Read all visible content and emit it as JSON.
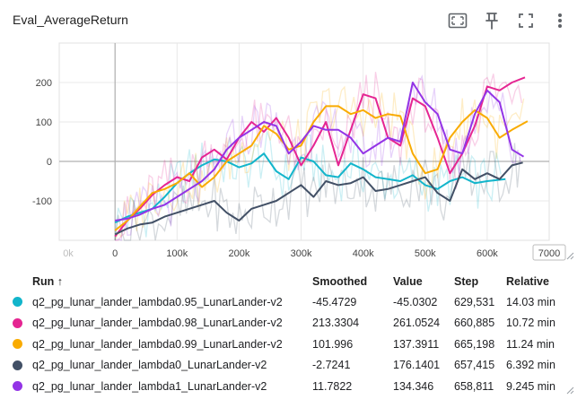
{
  "card": {
    "title": "Eval_AverageReturn"
  },
  "toolbar": [
    {
      "name": "fit-domain-icon"
    },
    {
      "name": "pin-icon"
    },
    {
      "name": "fullscreen-icon"
    },
    {
      "name": "more-vert-icon"
    }
  ],
  "table": {
    "headers": {
      "run": "Run ↑",
      "smoothed": "Smoothed",
      "value": "Value",
      "step": "Step",
      "relative": "Relative"
    },
    "rows": [
      {
        "color": "#12b5cb",
        "run": "q2_pg_lunar_lander_lambda0.95_LunarLander-v2",
        "smoothed": "-45.4729",
        "value": "-45.0302",
        "step": "629,531",
        "relative": "14.03 min"
      },
      {
        "color": "#e52592",
        "run": "q2_pg_lunar_lander_lambda0.98_LunarLander-v2",
        "smoothed": "213.3304",
        "value": "261.0524",
        "step": "660,885",
        "relative": "10.72 min"
      },
      {
        "color": "#f9ab00",
        "run": "q2_pg_lunar_lander_lambda0.99_LunarLander-v2",
        "smoothed": "101.996",
        "value": "137.3911",
        "step": "665,198",
        "relative": "11.24 min"
      },
      {
        "color": "#425066",
        "run": "q2_pg_lunar_lander_lambda0_LunarLander-v2",
        "smoothed": "-2.7241",
        "value": "176.1401",
        "step": "657,415",
        "relative": "6.392 min"
      },
      {
        "color": "#9334e6",
        "run": "q2_pg_lunar_lander_lambda1_LunarLander-v2",
        "smoothed": "11.7822",
        "value": "134.346",
        "step": "658,811",
        "relative": "9.245 min"
      }
    ]
  },
  "chart_data": {
    "type": "line",
    "x_ticks": [
      "0k",
      "0",
      "100k",
      "200k",
      "300k",
      "400k",
      "500k",
      "600k",
      "7000"
    ],
    "y_ticks": [
      "200",
      "100",
      "0",
      "-100"
    ],
    "xlim": [
      -90000,
      700000
    ],
    "ylim": [
      -200,
      300
    ],
    "series": [
      {
        "color": "#12b5cb",
        "x": [
          0,
          20000,
          40000,
          60000,
          80000,
          100000,
          120000,
          140000,
          160000,
          180000,
          200000,
          220000,
          240000,
          260000,
          280000,
          300000,
          320000,
          340000,
          360000,
          380000,
          400000,
          420000,
          440000,
          460000,
          480000,
          500000,
          520000,
          540000,
          560000,
          580000,
          600000,
          629531
        ],
        "y": [
          -155,
          -140,
          -130,
          -120,
          -90,
          -55,
          -30,
          -10,
          5,
          0,
          -15,
          -5,
          20,
          -25,
          -45,
          10,
          0,
          -35,
          -40,
          -5,
          -20,
          -40,
          -45,
          -50,
          -35,
          -60,
          -70,
          -50,
          -40,
          -55,
          -50,
          -45
        ]
      },
      {
        "color": "#e52592",
        "x": [
          0,
          20000,
          40000,
          60000,
          80000,
          100000,
          120000,
          140000,
          160000,
          180000,
          200000,
          220000,
          240000,
          260000,
          280000,
          300000,
          320000,
          340000,
          360000,
          380000,
          400000,
          420000,
          440000,
          460000,
          480000,
          500000,
          520000,
          540000,
          560000,
          580000,
          600000,
          620000,
          640000,
          660885
        ],
        "y": [
          -190,
          -150,
          -120,
          -85,
          -60,
          -40,
          -50,
          10,
          30,
          5,
          60,
          100,
          75,
          110,
          60,
          -10,
          40,
          100,
          -10,
          80,
          170,
          160,
          60,
          40,
          160,
          140,
          60,
          -30,
          20,
          90,
          190,
          180,
          200,
          213
        ]
      },
      {
        "color": "#f9ab00",
        "x": [
          0,
          20000,
          40000,
          60000,
          80000,
          100000,
          120000,
          140000,
          160000,
          180000,
          200000,
          220000,
          240000,
          260000,
          280000,
          300000,
          320000,
          340000,
          360000,
          380000,
          400000,
          420000,
          440000,
          460000,
          480000,
          500000,
          520000,
          540000,
          560000,
          580000,
          600000,
          620000,
          640000,
          665198
        ],
        "y": [
          -175,
          -150,
          -115,
          -80,
          -70,
          -55,
          -30,
          -65,
          -40,
          0,
          20,
          40,
          90,
          70,
          30,
          40,
          100,
          140,
          140,
          120,
          130,
          110,
          120,
          115,
          20,
          -30,
          -20,
          60,
          100,
          130,
          110,
          60,
          80,
          102
        ]
      },
      {
        "color": "#425066",
        "x": [
          0,
          20000,
          40000,
          60000,
          80000,
          100000,
          120000,
          140000,
          160000,
          180000,
          200000,
          220000,
          240000,
          260000,
          280000,
          300000,
          320000,
          340000,
          360000,
          380000,
          400000,
          420000,
          440000,
          460000,
          480000,
          500000,
          520000,
          540000,
          560000,
          580000,
          600000,
          620000,
          640000,
          657415
        ],
        "y": [
          -185,
          -170,
          -160,
          -155,
          -140,
          -130,
          -120,
          -110,
          -100,
          -130,
          -150,
          -120,
          -110,
          -100,
          -80,
          -60,
          -90,
          -50,
          -60,
          -55,
          -40,
          -75,
          -70,
          -60,
          -50,
          -40,
          -80,
          -100,
          -20,
          -45,
          -30,
          -45,
          -10,
          -3
        ]
      },
      {
        "color": "#9334e6",
        "x": [
          0,
          20000,
          40000,
          60000,
          80000,
          100000,
          120000,
          140000,
          160000,
          180000,
          200000,
          220000,
          240000,
          260000,
          280000,
          300000,
          320000,
          340000,
          360000,
          380000,
          400000,
          420000,
          440000,
          460000,
          480000,
          500000,
          520000,
          540000,
          560000,
          580000,
          600000,
          620000,
          640000,
          658811
        ],
        "y": [
          -150,
          -145,
          -135,
          -120,
          -110,
          -90,
          -70,
          -50,
          -20,
          30,
          60,
          80,
          100,
          90,
          20,
          50,
          90,
          80,
          80,
          60,
          20,
          40,
          60,
          50,
          200,
          150,
          120,
          30,
          20,
          120,
          180,
          150,
          30,
          12
        ]
      }
    ]
  }
}
